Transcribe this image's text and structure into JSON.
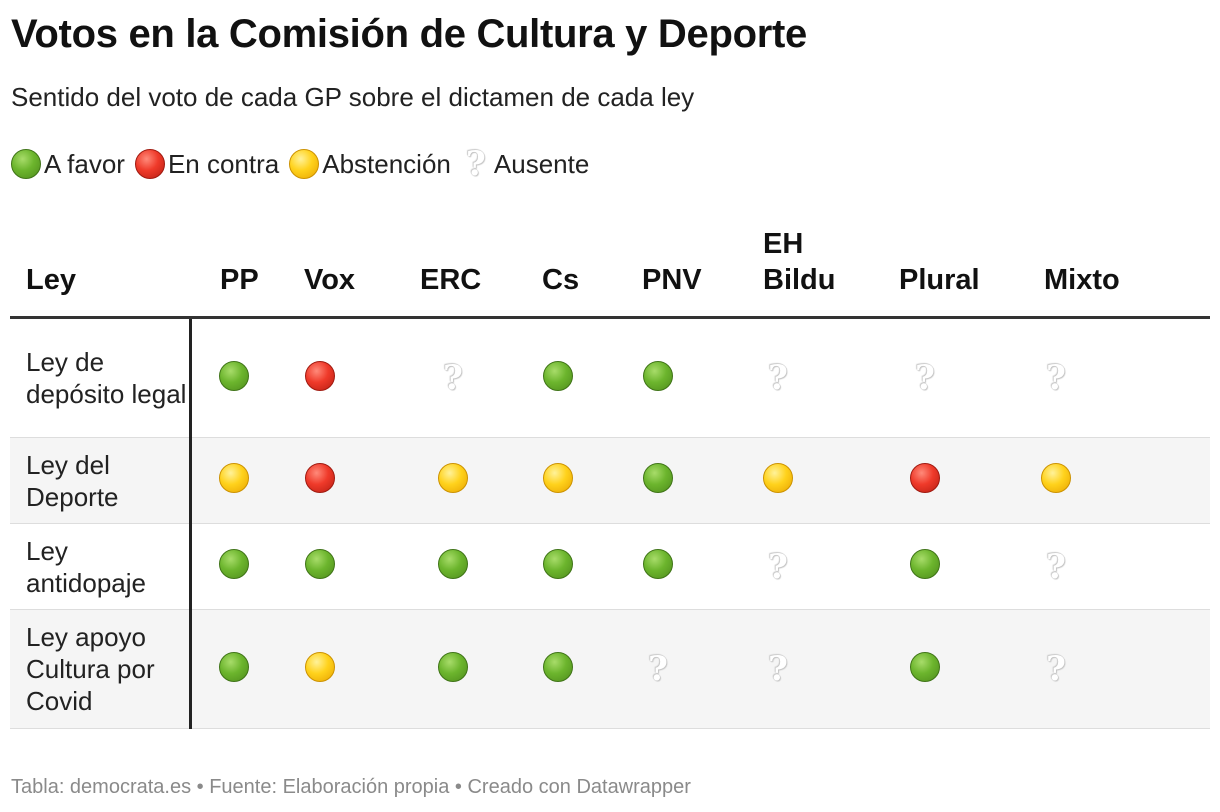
{
  "title": "Votos en la Comisión de Cultura y Deporte",
  "subtitle": "Sentido del voto de cada GP sobre el dictamen de cada ley",
  "legend": [
    {
      "key": "favor",
      "label": "A favor"
    },
    {
      "key": "contra",
      "label": "En contra"
    },
    {
      "key": "abst",
      "label": "Abstención"
    },
    {
      "key": "ausente",
      "label": "Ausente"
    }
  ],
  "colors": {
    "favor": "#6cb52d",
    "contra": "#ef3a2a",
    "abst": "#ffd21c",
    "ausente": "#e0e0e0"
  },
  "footer": "Tabla: democrata.es • Fuente: Elaboración propia • Creado con Datawrapper",
  "chart_data": {
    "type": "table",
    "columns": [
      "Ley",
      "PP",
      "Vox",
      "ERC",
      "Cs",
      "PNV",
      "EH Bildu",
      "Plural",
      "Mixto"
    ],
    "rows": [
      {
        "law": "Ley de depósito legal",
        "votes": [
          "favor",
          "contra",
          "ausente",
          "favor",
          "favor",
          "ausente",
          "ausente",
          "ausente"
        ]
      },
      {
        "law": "Ley del Deporte",
        "votes": [
          "abst",
          "contra",
          "abst",
          "abst",
          "favor",
          "abst",
          "contra",
          "abst"
        ]
      },
      {
        "law": "Ley antidopaje",
        "votes": [
          "favor",
          "favor",
          "favor",
          "favor",
          "favor",
          "ausente",
          "favor",
          "ausente"
        ]
      },
      {
        "law": "Ley apoyo Cultura por Covid",
        "votes": [
          "favor",
          "abst",
          "favor",
          "favor",
          "ausente",
          "ausente",
          "favor",
          "ausente"
        ]
      }
    ]
  }
}
